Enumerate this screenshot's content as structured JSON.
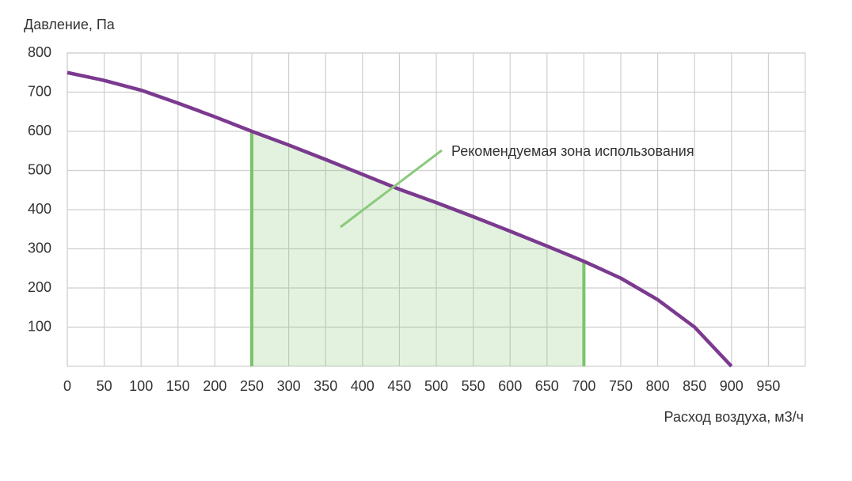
{
  "chart_data": {
    "type": "line",
    "y_label": "Давление, Па",
    "x_label": "Расход воздуха, м3/ч",
    "x": [
      0,
      50,
      100,
      150,
      200,
      250,
      300,
      350,
      400,
      450,
      500,
      550,
      600,
      650,
      700,
      750,
      800,
      850,
      900
    ],
    "values": [
      750,
      730,
      705,
      672,
      637,
      600,
      565,
      528,
      490,
      452,
      418,
      382,
      345,
      307,
      268,
      225,
      170,
      100,
      0
    ],
    "color": "#7b3a8f",
    "xlim": [
      0,
      1000
    ],
    "xticks": [
      0,
      50,
      100,
      150,
      200,
      250,
      300,
      350,
      400,
      450,
      500,
      550,
      600,
      650,
      700,
      750,
      800,
      850,
      900,
      950
    ],
    "ylim": [
      0,
      800
    ],
    "yticks": [
      100,
      200,
      300,
      400,
      500,
      600,
      700,
      800
    ],
    "grid": true,
    "zone": {
      "range": [
        250,
        700
      ],
      "label": "Рекомендуемая зона использования",
      "color": "#7cc46a"
    }
  }
}
